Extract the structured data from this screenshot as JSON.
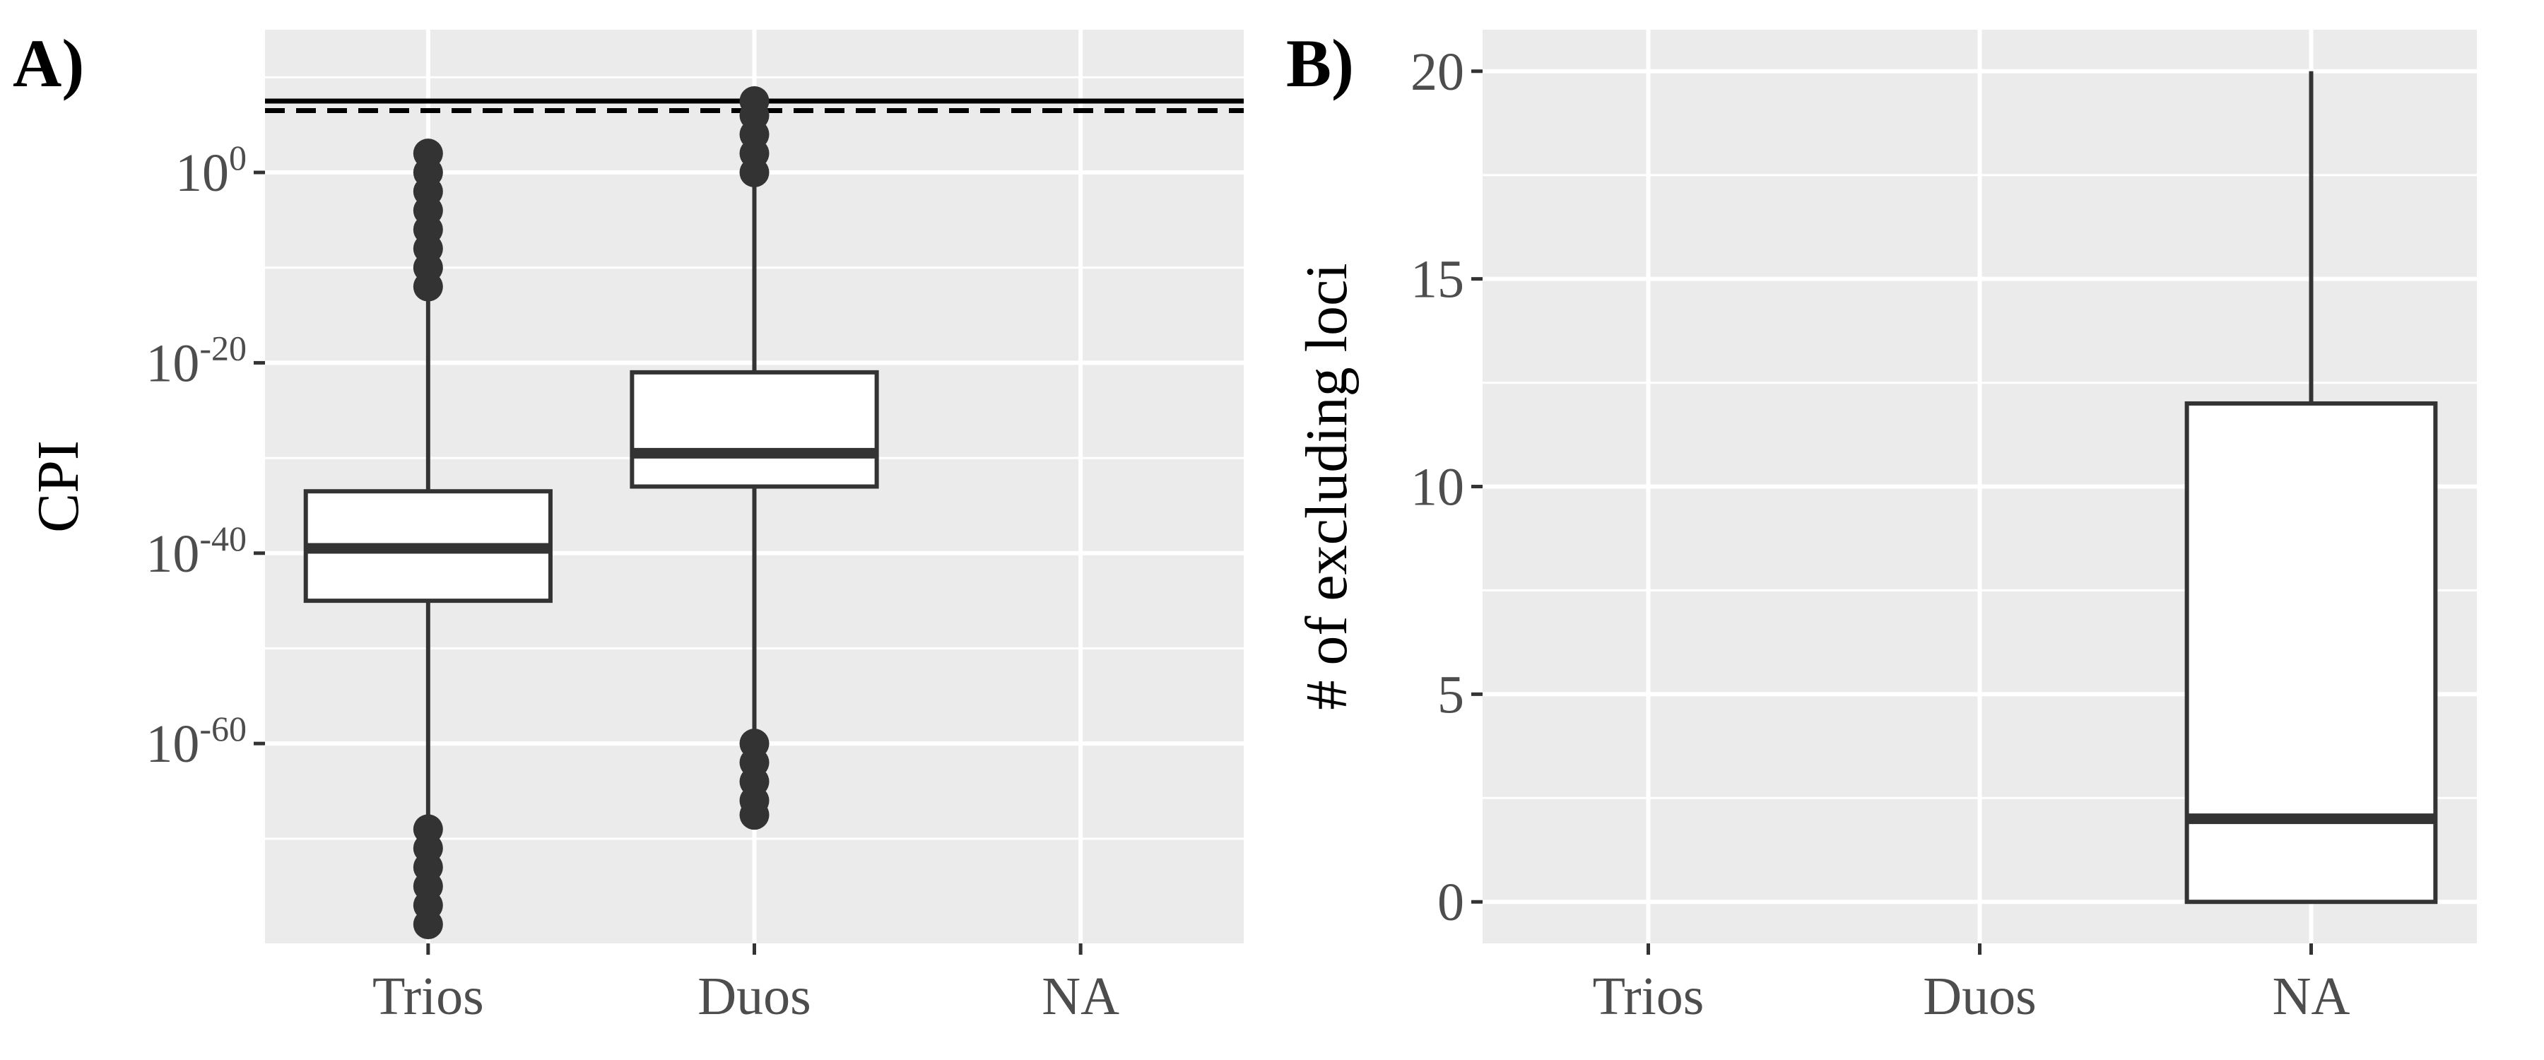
{
  "chart_data": [
    {
      "panel_label": "A)",
      "type": "box",
      "ylabel": "CPI",
      "y_scale": "log10",
      "ylim_log10": [
        -81,
        15
      ],
      "y_ticks_log10": [
        0,
        -20,
        -40,
        -60
      ],
      "y_tick_base": "10",
      "categories": [
        "Trios",
        "Duos",
        "NA"
      ],
      "boxes": [
        {
          "category": "Trios",
          "whisker_low_log10": -68,
          "q1_log10": -45,
          "median_log10": -39.5,
          "q3_log10": -33.5,
          "whisker_high_log10": -12.5,
          "outliers_high_log10": [
            -12,
            -10,
            -8,
            -6,
            -4,
            -2,
            0,
            2
          ],
          "outliers_low_log10": [
            -69,
            -71,
            -73,
            -75,
            -77,
            -79
          ]
        },
        {
          "category": "Duos",
          "whisker_low_log10": -59,
          "q1_log10": -33,
          "median_log10": -29.5,
          "q3_log10": -21,
          "whisker_high_log10": -0.5,
          "outliers_high_log10": [
            0,
            2,
            4,
            6,
            7.5
          ],
          "outliers_low_log10": [
            -60,
            -62,
            -64,
            -66,
            -67.5
          ]
        },
        {
          "category": "NA"
        }
      ],
      "reference_lines": [
        {
          "style": "solid",
          "y_log10": 7.5
        },
        {
          "style": "dashed",
          "y_log10": 6.5
        }
      ]
    },
    {
      "panel_label": "B)",
      "type": "box",
      "ylabel": "# of excluding loci",
      "ylim": [
        -1,
        21
      ],
      "y_ticks": [
        0,
        5,
        10,
        15,
        20
      ],
      "categories": [
        "Trios",
        "Duos",
        "NA"
      ],
      "boxes": [
        {
          "category": "Trios"
        },
        {
          "category": "Duos"
        },
        {
          "category": "NA",
          "whisker_low": 0,
          "q1": 0,
          "median": 2,
          "q3": 12,
          "whisker_high": 20
        }
      ]
    }
  ]
}
